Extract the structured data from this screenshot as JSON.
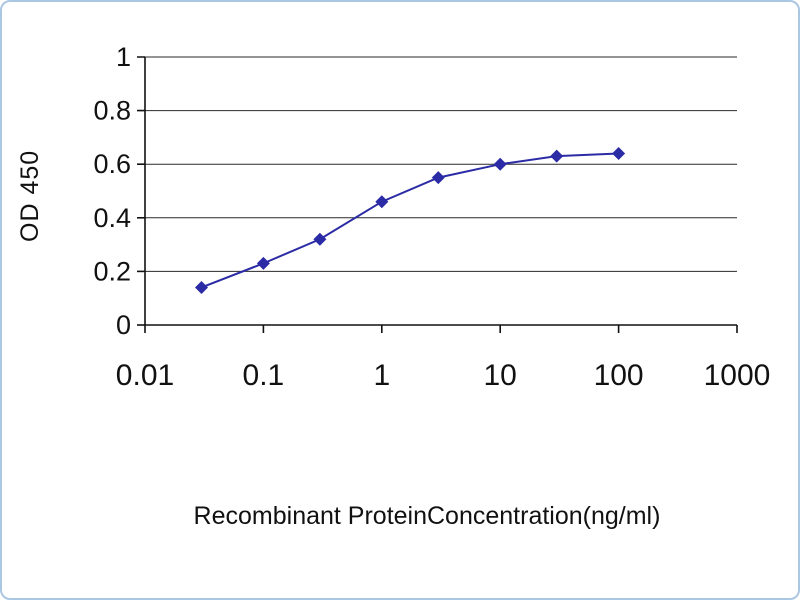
{
  "figure": {
    "background": "#ffffff",
    "border_color": "#aac8e4"
  },
  "chart_data": {
    "type": "line",
    "title": "",
    "xlabel": "Recombinant ProteinConcentration(ng/ml)",
    "ylabel": "OD 450",
    "x_scale": "log",
    "xlim": [
      0.01,
      1000
    ],
    "ylim": [
      0,
      1
    ],
    "x_ticks": [
      0.01,
      0.1,
      1,
      10,
      100,
      1000
    ],
    "x_tick_labels": [
      "0.01",
      "0.1",
      "1",
      "10",
      "100",
      "1000"
    ],
    "y_ticks": [
      0,
      0.2,
      0.4,
      0.6,
      0.8,
      1
    ],
    "y_tick_labels": [
      "0",
      "0.2",
      "0.4",
      "0.6",
      "0.8",
      "1"
    ],
    "grid": "horizontal",
    "legend": "none",
    "line_color": "#2b2ba6",
    "marker": "diamond",
    "axis_color": "#111111",
    "series": [
      {
        "name": "OD 450",
        "x": [
          0.03,
          0.1,
          0.3,
          1,
          3,
          10,
          30,
          100
        ],
        "y": [
          0.14,
          0.23,
          0.32,
          0.46,
          0.55,
          0.6,
          0.63,
          0.64
        ]
      }
    ]
  }
}
